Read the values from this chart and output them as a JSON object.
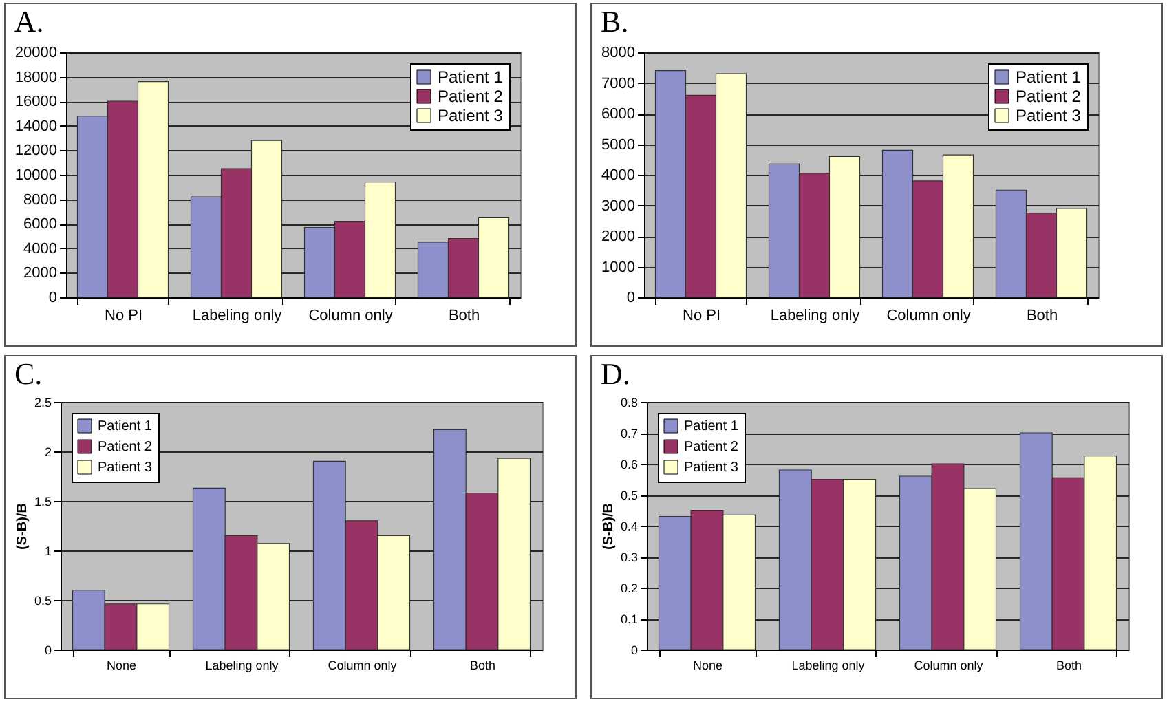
{
  "chart_data": [
    {
      "type": "bar",
      "title": "A.",
      "categories": [
        "No PI",
        "Labeling only",
        "Column only",
        "Both"
      ],
      "series": [
        {
          "name": "Patient 1",
          "color": "#8e90cc",
          "values": [
            14800,
            8200,
            5700,
            4500
          ]
        },
        {
          "name": "Patient 2",
          "color": "#993366",
          "values": [
            16000,
            10500,
            6200,
            4800
          ]
        },
        {
          "name": "Patient 3",
          "color": "#ffffcc",
          "values": [
            17600,
            12800,
            9400,
            6500
          ]
        }
      ],
      "ylim": [
        0,
        20000
      ],
      "yticks": [
        0,
        2000,
        4000,
        6000,
        8000,
        10000,
        12000,
        14000,
        16000,
        18000,
        20000
      ],
      "grid": "y",
      "legend": "top right"
    },
    {
      "type": "bar",
      "title": "B.",
      "categories": [
        "No PI",
        "Labeling only",
        "Column only",
        "Both"
      ],
      "series": [
        {
          "name": "Patient 1",
          "color": "#8e90cc",
          "values": [
            7400,
            4350,
            4800,
            3500
          ]
        },
        {
          "name": "Patient 2",
          "color": "#993366",
          "values": [
            6600,
            4050,
            3800,
            2750
          ]
        },
        {
          "name": "Patient 3",
          "color": "#ffffcc",
          "values": [
            7300,
            4600,
            4650,
            2900
          ]
        }
      ],
      "ylim": [
        0,
        8000
      ],
      "yticks": [
        0,
        1000,
        2000,
        3000,
        4000,
        5000,
        6000,
        7000,
        8000
      ],
      "grid": "y",
      "legend": "top right"
    },
    {
      "type": "bar",
      "title": "C.",
      "ylabel": "(S-B)/B",
      "categories": [
        "None",
        "Labeling only",
        "Column only",
        "Both"
      ],
      "series": [
        {
          "name": "Patient 1",
          "color": "#8e90cc",
          "values": [
            0.6,
            1.63,
            1.9,
            2.22
          ]
        },
        {
          "name": "Patient 2",
          "color": "#993366",
          "values": [
            0.46,
            1.15,
            1.3,
            1.58
          ]
        },
        {
          "name": "Patient 3",
          "color": "#ffffcc",
          "values": [
            0.46,
            1.07,
            1.15,
            1.93
          ]
        }
      ],
      "ylim": [
        0,
        2.5
      ],
      "yticks": [
        0,
        0.5,
        1,
        1.5,
        2,
        2.5
      ],
      "grid": "y",
      "legend": "top left"
    },
    {
      "type": "bar",
      "title": "D.",
      "ylabel": "(S-B)/B",
      "categories": [
        "None",
        "Labeling only",
        "Column only",
        "Both"
      ],
      "series": [
        {
          "name": "Patient 1",
          "color": "#8e90cc",
          "values": [
            0.43,
            0.58,
            0.56,
            0.7
          ]
        },
        {
          "name": "Patient 2",
          "color": "#993366",
          "values": [
            0.45,
            0.55,
            0.6,
            0.555
          ]
        },
        {
          "name": "Patient 3",
          "color": "#ffffcc",
          "values": [
            0.435,
            0.55,
            0.52,
            0.625
          ]
        }
      ],
      "ylim": [
        0,
        0.8
      ],
      "yticks": [
        0,
        0.1,
        0.2,
        0.3,
        0.4,
        0.5,
        0.6,
        0.7,
        0.8
      ],
      "grid": "y",
      "legend": "top left"
    }
  ]
}
